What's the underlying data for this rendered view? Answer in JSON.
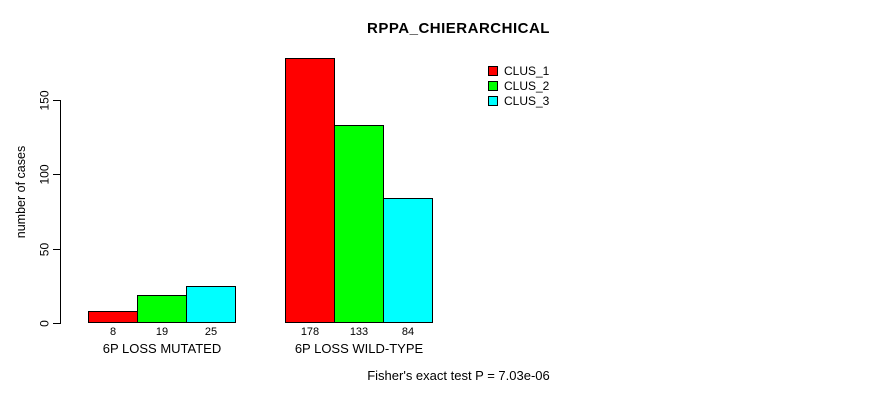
{
  "chart_data": {
    "type": "bar",
    "title": "RPPA_CHIERARCHICAL",
    "ylabel": "number of cases",
    "xlabel": "",
    "groups": [
      "6P LOSS MUTATED",
      "6P LOSS WILD-TYPE"
    ],
    "series": [
      {
        "name": "CLUS_1",
        "color": "#FF0000",
        "values": [
          8,
          178
        ]
      },
      {
        "name": "CLUS_2",
        "color": "#00FF00",
        "values": [
          19,
          133
        ]
      },
      {
        "name": "CLUS_3",
        "color": "#00FFFF",
        "values": [
          25,
          84
        ]
      }
    ],
    "yticks": [
      0,
      50,
      100,
      150
    ],
    "ylim": [
      0,
      150
    ],
    "grid": false,
    "legend_position": "top-right",
    "bar_border_color": "#000000",
    "text_color": "#000000",
    "background_color": "#FFFFFF",
    "footnote": "Fisher's exact test P = 7.03e-06"
  }
}
